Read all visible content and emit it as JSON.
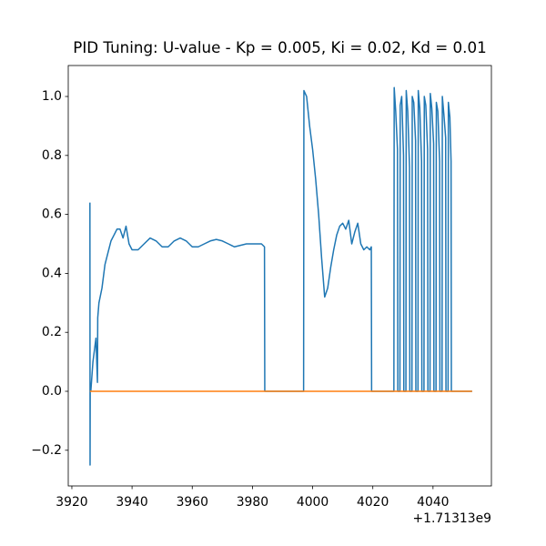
{
  "chart_data": {
    "type": "line",
    "title": "PID Tuning: U-value - Kp = 0.005, Ki = 0.02, Kd = 0.01",
    "x_offset_label": "+1.71313e9",
    "xlim": [
      3918.8,
      4059.4
    ],
    "ylim": [
      -0.321,
      1.105
    ],
    "xticks": [
      3920,
      3940,
      3960,
      3980,
      4000,
      4020,
      4040
    ],
    "yticks": [
      {
        "value": -0.2,
        "label": "−0.2"
      },
      {
        "value": 0,
        "label": "0.0"
      },
      {
        "value": 0.2,
        "label": "0.2"
      },
      {
        "value": 0.4,
        "label": "0.4"
      },
      {
        "value": 0.6,
        "label": "0.6"
      },
      {
        "value": 0.8,
        "label": "0.8"
      },
      {
        "value": 1,
        "label": "1.0"
      }
    ],
    "grid": false,
    "series": [
      {
        "color": "#1f77b4",
        "x": [
          3926.0,
          3926.05,
          3926.1,
          3926.3,
          3927,
          3928,
          3928.5,
          3928.6,
          3929,
          3930,
          3931,
          3932,
          3933,
          3934,
          3935,
          3936,
          3937,
          3938,
          3939,
          3940,
          3942,
          3944,
          3946,
          3948,
          3950,
          3952,
          3954,
          3956,
          3958,
          3960,
          3962,
          3964,
          3966,
          3968,
          3970,
          3972,
          3974,
          3976,
          3978,
          3980,
          3983,
          3984,
          3984.1,
          3997,
          3997.1,
          3998,
          3999,
          4000,
          4001,
          4002,
          4003,
          4004,
          4005,
          4006,
          4007,
          4008,
          4009,
          4010,
          4011,
          4012,
          4013,
          4014,
          4015,
          4016,
          4017,
          4018,
          4019,
          4019.5,
          4019.6,
          4027.0,
          4027.1,
          4027.6,
          4028.2,
          4028.3,
          4029.0,
          4029.1,
          4029.6,
          4030.2,
          4030.3,
          4031.0,
          4031.1,
          4031.6,
          4032.2,
          4032.3,
          4033.0,
          4033.1,
          4033.6,
          4034.2,
          4034.3,
          4035.0,
          4035.1,
          4035.6,
          4036.2,
          4036.3,
          4037.0,
          4037.1,
          4037.6,
          4038.2,
          4038.3,
          4039.0,
          4039.1,
          4039.6,
          4040.2,
          4040.3,
          4041.0,
          4041.1,
          4041.6,
          4042.2,
          4042.3,
          4043.0,
          4043.1,
          4043.6,
          4044.2,
          4044.3,
          4045.0,
          4045.1,
          4045.6,
          4046.0,
          4046.1,
          4053
        ],
        "values": [
          0.64,
          -0.25,
          0.0,
          0.0,
          0.1,
          0.18,
          0.03,
          0.25,
          0.3,
          0.35,
          0.43,
          0.47,
          0.51,
          0.53,
          0.55,
          0.55,
          0.52,
          0.56,
          0.5,
          0.48,
          0.48,
          0.5,
          0.52,
          0.51,
          0.49,
          0.49,
          0.51,
          0.52,
          0.51,
          0.49,
          0.49,
          0.5,
          0.51,
          0.515,
          0.51,
          0.5,
          0.49,
          0.495,
          0.5,
          0.5,
          0.5,
          0.49,
          0.0,
          0.0,
          1.02,
          1.0,
          0.9,
          0.82,
          0.72,
          0.6,
          0.45,
          0.32,
          0.35,
          0.42,
          0.48,
          0.53,
          0.56,
          0.57,
          0.55,
          0.58,
          0.5,
          0.54,
          0.57,
          0.5,
          0.48,
          0.49,
          0.48,
          0.49,
          0.0,
          0.0,
          1.03,
          0.95,
          0.82,
          0.0,
          0.0,
          0.97,
          1.0,
          0.8,
          0.0,
          0.0,
          1.02,
          0.95,
          0.76,
          0.0,
          0.0,
          1.0,
          0.98,
          0.85,
          0.0,
          0.0,
          1.02,
          0.96,
          0.78,
          0.0,
          0.0,
          1.0,
          0.97,
          0.82,
          0.0,
          0.0,
          1.01,
          0.96,
          0.84,
          0.0,
          0.0,
          0.98,
          0.95,
          0.78,
          0.0,
          0.0,
          1.0,
          0.94,
          0.86,
          0.0,
          0.0,
          0.98,
          0.93,
          0.78,
          0.0,
          0.0
        ]
      },
      {
        "color": "#ff7f0e",
        "x": [
          3926,
          4053
        ],
        "values": [
          0,
          0
        ]
      }
    ]
  }
}
